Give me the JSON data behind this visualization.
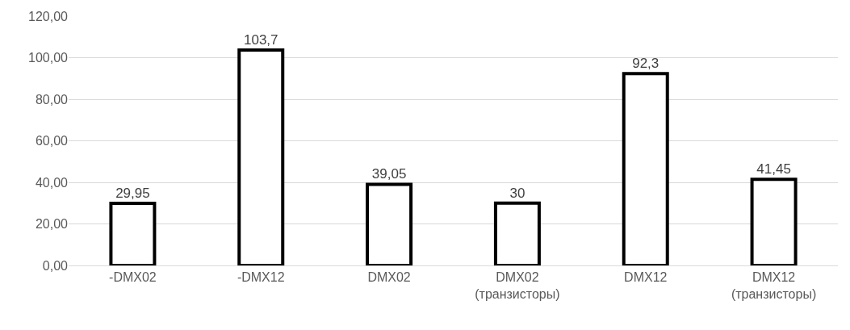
{
  "chart_data": {
    "type": "bar",
    "categories": [
      "-DMX02",
      "-DMX12",
      "DMX02",
      "DMX02 (транзисторы)",
      "DMX12",
      "DMX12 (транзисторы)"
    ],
    "values": [
      29.95,
      103.7,
      39.05,
      30,
      92.3,
      41.45
    ],
    "value_labels": [
      "29,95",
      "103,7",
      "39,05",
      "30",
      "92,3",
      "41,45"
    ],
    "color": "#000000",
    "ylim": [
      0,
      120
    ],
    "yticks": [
      {
        "value": 0,
        "label": "0,00"
      },
      {
        "value": 20,
        "label": "20,00"
      },
      {
        "value": 40,
        "label": "40,00"
      },
      {
        "value": 60,
        "label": "60,00"
      },
      {
        "value": 80,
        "label": "80,00"
      },
      {
        "value": 100,
        "label": "100,00"
      },
      {
        "value": 120,
        "label": "120,00"
      }
    ],
    "grid": "y"
  }
}
